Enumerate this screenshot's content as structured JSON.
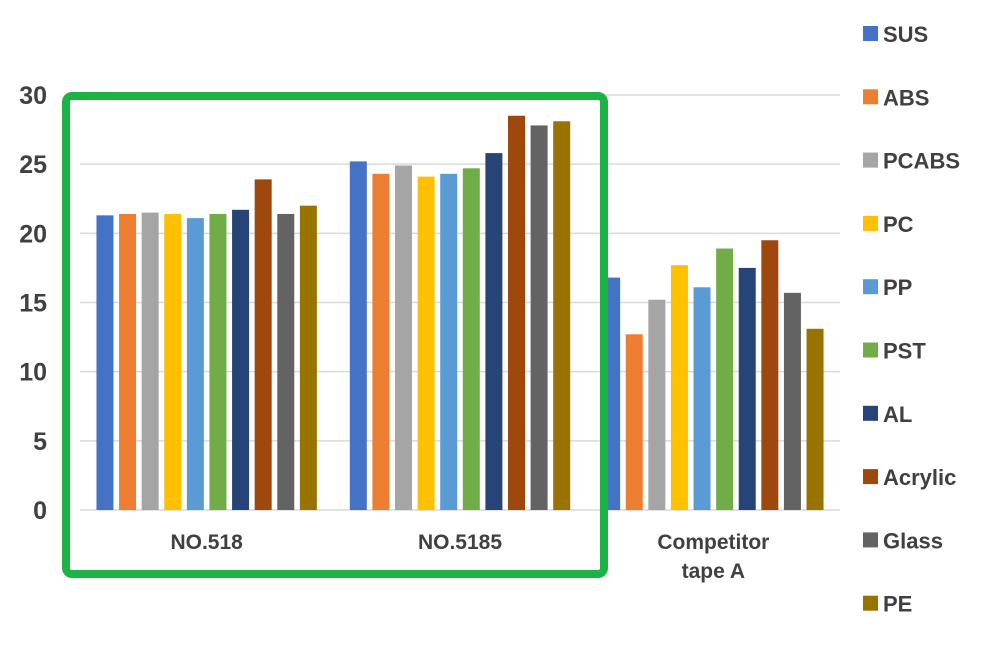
{
  "chart_data": {
    "type": "bar",
    "categories": [
      [
        "NO.518"
      ],
      [
        "NO.5185"
      ],
      [
        "Competitor",
        "tape A"
      ]
    ],
    "ylim": [
      0,
      30
    ],
    "yticks": [
      "0",
      "5",
      "10",
      "15",
      "20",
      "25",
      "30"
    ],
    "grid": true,
    "legend_position": "right",
    "highlight": {
      "categories": [
        "NO.518",
        "NO.5185"
      ],
      "color": "#1db344"
    },
    "series": [
      {
        "name": "SUS",
        "color": "#4472c4",
        "values": [
          21.3,
          25.2,
          16.8
        ]
      },
      {
        "name": "ABS",
        "color": "#ed7d31",
        "values": [
          21.4,
          24.3,
          12.7
        ]
      },
      {
        "name": "PCABS",
        "color": "#a5a5a5",
        "values": [
          21.5,
          24.9,
          15.2
        ]
      },
      {
        "name": "PC",
        "color": "#ffc000",
        "values": [
          21.4,
          24.1,
          17.7
        ]
      },
      {
        "name": "PP",
        "color": "#5b9bd5",
        "values": [
          21.1,
          24.3,
          16.1
        ]
      },
      {
        "name": "PST",
        "color": "#70ad47",
        "values": [
          21.4,
          24.7,
          18.9
        ]
      },
      {
        "name": "AL",
        "color": "#264478",
        "values": [
          21.7,
          25.8,
          17.5
        ]
      },
      {
        "name": "Acrylic",
        "color": "#9e480e",
        "values": [
          23.9,
          28.5,
          19.5
        ]
      },
      {
        "name": "Glass",
        "color": "#636363",
        "values": [
          21.4,
          27.8,
          15.7
        ]
      },
      {
        "name": "PE",
        "color": "#997300",
        "values": [
          22.0,
          28.1,
          13.1
        ]
      }
    ]
  }
}
